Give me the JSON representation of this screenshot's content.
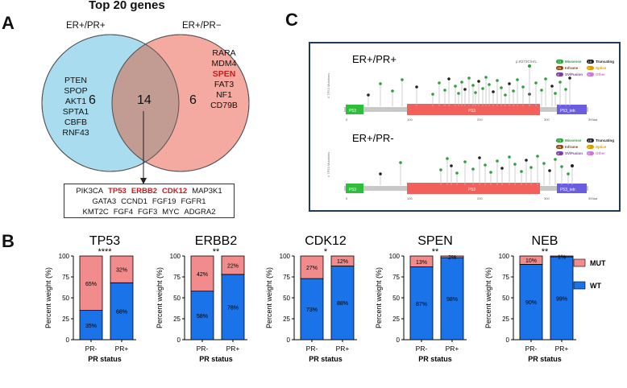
{
  "panelA": {
    "letter": "A",
    "title": "Top 20 genes",
    "left_label": "ER+/PR+",
    "right_label": "ER+/PR−",
    "left_count": "6",
    "overlap_count": "14",
    "right_count": "6",
    "left_genes": [
      "PTEN",
      "SPOP",
      "AKT1",
      "SPTA1",
      "CBFB",
      "RNF43"
    ],
    "right_genes": [
      {
        "name": "RARA",
        "highlight": false
      },
      {
        "name": "MDM4",
        "highlight": false
      },
      {
        "name": "SPEN",
        "highlight": true
      },
      {
        "name": "FAT3",
        "highlight": false
      },
      {
        "name": "NF1",
        "highlight": false
      },
      {
        "name": "CD79B",
        "highlight": false
      }
    ],
    "shared_rows": [
      [
        {
          "name": "PIK3CA",
          "highlight": false
        },
        {
          "name": "TP53",
          "highlight": true
        },
        {
          "name": "ERBB2",
          "highlight": true
        },
        {
          "name": "CDK12",
          "highlight": true
        },
        {
          "name": "MAP3K1",
          "highlight": false
        }
      ],
      [
        {
          "name": "GATA3",
          "highlight": false
        },
        {
          "name": "CCND1",
          "highlight": false
        },
        {
          "name": "FGF19",
          "highlight": false
        },
        {
          "name": "FGFR1",
          "highlight": false
        }
      ],
      [
        {
          "name": "KMT2C",
          "highlight": false
        },
        {
          "name": "FGF4",
          "highlight": false
        },
        {
          "name": "FGF3",
          "highlight": false
        },
        {
          "name": "MYC",
          "highlight": false
        },
        {
          "name": "ADGRA2",
          "highlight": false
        }
      ]
    ],
    "colors": {
      "left": "#a9dcee",
      "right": "#f4aaa0",
      "overlap": "#c29b93",
      "highlight": "#c41e1e"
    }
  },
  "panelC": {
    "letter": "C",
    "tracks": [
      {
        "label": "ER+/PR+",
        "annotation": "p.R273C/H/L"
      },
      {
        "label": "ER+/PR-",
        "annotation": ""
      }
    ],
    "y_axis_label": "# TP53 Mutations",
    "domains": [
      "P53",
      "P53",
      "P53_tetr."
    ],
    "ticks": [
      "0",
      "100",
      "200",
      "300",
      "393aa"
    ],
    "legend": [
      {
        "code": "73",
        "text": "Missense",
        "color": "#2e9e3e"
      },
      {
        "code": "25",
        "text": "Inframe",
        "color": "#8b4513"
      },
      {
        "code": "4",
        "text": "SV/Fusion",
        "color": "#7b3fa0"
      },
      {
        "code": "18",
        "text": "Truncating",
        "color": "#222222"
      },
      {
        "code": "0",
        "text": "Splice",
        "color": "#d8a000"
      },
      {
        "code": "0",
        "text": "Other",
        "color": "#c77ad8"
      }
    ],
    "colors": {
      "domain_p53": "#f2605c",
      "domain_left": "#2ebd3c",
      "domain_tetr": "#6a5de0",
      "backbone": "#c8c8c8",
      "border": "#1f3b5a"
    }
  },
  "panelB": {
    "letter": "B",
    "legend": [
      {
        "label": "MUT",
        "color": "#f28b8b"
      },
      {
        "label": "WT",
        "color": "#1a73e8"
      }
    ],
    "chart_data": [
      {
        "type": "bar",
        "stacked": true,
        "title": "TP53",
        "significance": "****",
        "categories": [
          "PR-",
          "PR+"
        ],
        "series": [
          {
            "name": "WT",
            "values": [
              35,
              68
            ],
            "labels": [
              "35%",
              "68%"
            ]
          },
          {
            "name": "MUT",
            "values": [
              65,
              32
            ],
            "labels": [
              "65%",
              "32%"
            ]
          }
        ],
        "xlabel": "PR status",
        "ylabel": "Percent weight (%)",
        "ylim": [
          0,
          100
        ],
        "yticks": [
          "0",
          "25",
          "50",
          "75",
          "100"
        ]
      },
      {
        "type": "bar",
        "stacked": true,
        "title": "ERBB2",
        "significance": "**",
        "categories": [
          "PR-",
          "PR+"
        ],
        "series": [
          {
            "name": "WT",
            "values": [
              58,
              78
            ],
            "labels": [
              "58%",
              "78%"
            ]
          },
          {
            "name": "MUT",
            "values": [
              42,
              22
            ],
            "labels": [
              "42%",
              "22%"
            ]
          }
        ],
        "xlabel": "PR status",
        "ylabel": "Percent weight (%)",
        "ylim": [
          0,
          100
        ],
        "yticks": [
          "0",
          "25",
          "50",
          "75",
          "100"
        ]
      },
      {
        "type": "bar",
        "stacked": true,
        "title": "CDK12",
        "significance": "*",
        "categories": [
          "PR-",
          "PR+"
        ],
        "series": [
          {
            "name": "WT",
            "values": [
              73,
              88
            ],
            "labels": [
              "73%",
              "88%"
            ]
          },
          {
            "name": "MUT",
            "values": [
              27,
              12
            ],
            "labels": [
              "27%",
              "12%"
            ]
          }
        ],
        "xlabel": "PR status",
        "ylabel": "Percent weight (%)",
        "ylim": [
          0,
          100
        ],
        "yticks": [
          "0",
          "25",
          "50",
          "75",
          "100"
        ]
      },
      {
        "type": "bar",
        "stacked": true,
        "title": "SPEN",
        "significance": "**",
        "categories": [
          "PR-",
          "PR+"
        ],
        "series": [
          {
            "name": "WT",
            "values": [
              87,
              98
            ],
            "labels": [
              "87%",
              "98%"
            ]
          },
          {
            "name": "MUT",
            "values": [
              13,
              2
            ],
            "labels": [
              "13%",
              "2%"
            ]
          }
        ],
        "xlabel": "PR status",
        "ylabel": "Percent weight (%)",
        "ylim": [
          0,
          100
        ],
        "yticks": [
          "0",
          "25",
          "50",
          "75",
          "100"
        ]
      },
      {
        "type": "bar",
        "stacked": true,
        "title": "NEB",
        "significance": "**",
        "categories": [
          "PR-",
          "PR+"
        ],
        "series": [
          {
            "name": "WT",
            "values": [
              90,
              99
            ],
            "labels": [
              "90%",
              "99%"
            ]
          },
          {
            "name": "MUT",
            "values": [
              10,
              1
            ],
            "labels": [
              "10%",
              "1%"
            ]
          }
        ],
        "xlabel": "PR status",
        "ylabel": "Percent weight (%)",
        "ylim": [
          0,
          100
        ],
        "yticks": [
          "0",
          "25",
          "50",
          "75",
          "100"
        ]
      }
    ]
  }
}
